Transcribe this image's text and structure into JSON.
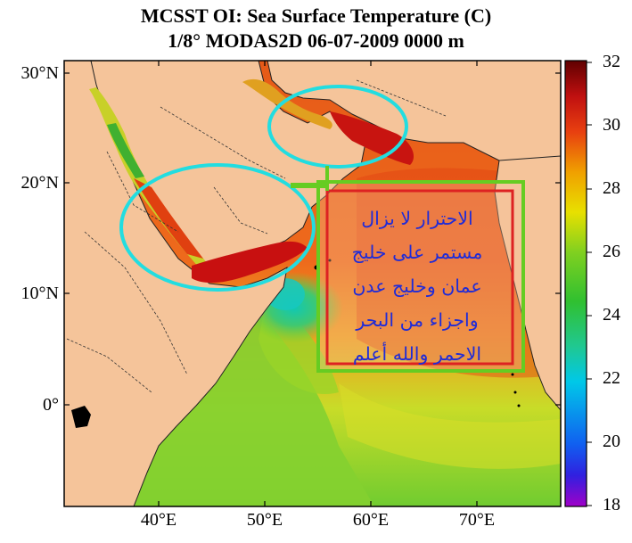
{
  "title": {
    "line1": "MCSST OI:  Sea Surface Temperature (C)",
    "line2": "1/8° MODAS2D 06-07-2009 0000 m"
  },
  "map": {
    "lat_ticks": [
      "30°N",
      "20°N",
      "10°N",
      "0°"
    ],
    "lon_ticks": [
      "40°E",
      "50°E",
      "60°E",
      "70°E"
    ],
    "land_color": "#f5c49a",
    "border_color": "#333333"
  },
  "colorbar": {
    "labels": [
      "32",
      "30",
      "28",
      "26",
      "24",
      "22",
      "20",
      "18"
    ],
    "min": 18,
    "max": 32,
    "stops": [
      "#a000c8",
      "#3020e0",
      "#1060f0",
      "#00c8e8",
      "#20c890",
      "#30c030",
      "#80d020",
      "#e8e000",
      "#f0a000",
      "#e84010",
      "#c01010",
      "#600000"
    ]
  },
  "annotation": {
    "lines": [
      "الاحترار لا يزال",
      "مستمر على خليج",
      "عمان وخليج عدن",
      "واجزاء من البحر",
      "الاحمر والله أعلم"
    ],
    "text_color": "#1f2bd8",
    "ellipse_color": "#22dde0",
    "outer_box_color": "#66cc22",
    "inner_box_color": "#dd2222"
  }
}
